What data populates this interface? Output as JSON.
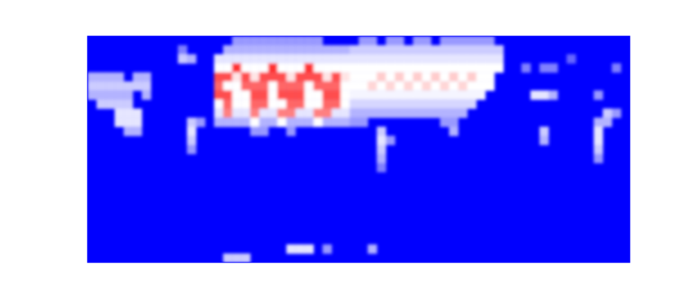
{
  "chart_data": {
    "type": "heatmap",
    "xlim": [
      0,
      60
    ],
    "ylim": [
      0,
      25
    ],
    "tick_labels": false,
    "color_range": [
      0,
      1
    ],
    "cells": [
      [
        16,
        24,
        0.3
      ],
      [
        17,
        24,
        0.3
      ],
      [
        18,
        24,
        0.3
      ],
      [
        19,
        24,
        0.3
      ],
      [
        20,
        24,
        0.3
      ],
      [
        21,
        24,
        0.3
      ],
      [
        22,
        24,
        0.3
      ],
      [
        23,
        24,
        0.3
      ],
      [
        24,
        24,
        0.3
      ],
      [
        25,
        24,
        0.3
      ],
      [
        30,
        24,
        0.3
      ],
      [
        31,
        24,
        0.3
      ],
      [
        33,
        24,
        0.3
      ],
      [
        34,
        24,
        0.3
      ],
      [
        36,
        24,
        0.3
      ],
      [
        37,
        24,
        0.3
      ],
      [
        39,
        24,
        0.3
      ],
      [
        40,
        24,
        0.3
      ],
      [
        41,
        24,
        0.3
      ],
      [
        42,
        24,
        0.3
      ],
      [
        43,
        24,
        0.3
      ],
      [
        44,
        24,
        0.3
      ],
      [
        10,
        23,
        0.25
      ],
      [
        15,
        23,
        0.35
      ],
      [
        16,
        23,
        0.35
      ],
      [
        17,
        23,
        0.35
      ],
      [
        18,
        23,
        0.35
      ],
      [
        19,
        23,
        0.35
      ],
      [
        20,
        23,
        0.35
      ],
      [
        21,
        23,
        0.35
      ],
      [
        22,
        23,
        0.35
      ],
      [
        23,
        23,
        0.35
      ],
      [
        24,
        23,
        0.35
      ],
      [
        25,
        23,
        0.35
      ],
      [
        26,
        23,
        0.35
      ],
      [
        27,
        23,
        0.35
      ],
      [
        28,
        23,
        0.35
      ],
      [
        29,
        23,
        0.4
      ],
      [
        30,
        23,
        0.4
      ],
      [
        31,
        23,
        0.4
      ],
      [
        32,
        23,
        0.4
      ],
      [
        33,
        23,
        0.4
      ],
      [
        34,
        23,
        0.4
      ],
      [
        35,
        23,
        0.4
      ],
      [
        36,
        23,
        0.4
      ],
      [
        37,
        23,
        0.4
      ],
      [
        38,
        23,
        0.4
      ],
      [
        39,
        23,
        0.4
      ],
      [
        40,
        23,
        0.4
      ],
      [
        41,
        23,
        0.4
      ],
      [
        42,
        23,
        0.4
      ],
      [
        43,
        23,
        0.4
      ],
      [
        44,
        23,
        0.4
      ],
      [
        45,
        23,
        0.4
      ],
      [
        10,
        22,
        0.4
      ],
      [
        11,
        22,
        0.35
      ],
      [
        14,
        22,
        0.45
      ],
      [
        15,
        22,
        0.45
      ],
      [
        16,
        22,
        0.45
      ],
      [
        17,
        22,
        0.45
      ],
      [
        18,
        22,
        0.45
      ],
      [
        19,
        22,
        0.45
      ],
      [
        20,
        22,
        0.45
      ],
      [
        21,
        22,
        0.45
      ],
      [
        22,
        22,
        0.45
      ],
      [
        23,
        22,
        0.45
      ],
      [
        24,
        22,
        0.45
      ],
      [
        25,
        22,
        0.45
      ],
      [
        26,
        22,
        0.45
      ],
      [
        27,
        22,
        0.45
      ],
      [
        28,
        22,
        0.45
      ],
      [
        29,
        22,
        0.45
      ],
      [
        30,
        22,
        0.45
      ],
      [
        31,
        22,
        0.45
      ],
      [
        32,
        22,
        0.45
      ],
      [
        33,
        22,
        0.45
      ],
      [
        34,
        22,
        0.45
      ],
      [
        35,
        22,
        0.45
      ],
      [
        36,
        22,
        0.45
      ],
      [
        37,
        22,
        0.45
      ],
      [
        38,
        22,
        0.45
      ],
      [
        39,
        22,
        0.45
      ],
      [
        40,
        22,
        0.45
      ],
      [
        41,
        22,
        0.45
      ],
      [
        42,
        22,
        0.45
      ],
      [
        43,
        22,
        0.45
      ],
      [
        44,
        22,
        0.45
      ],
      [
        45,
        22,
        0.45
      ],
      [
        53,
        22,
        0.2
      ],
      [
        14,
        21,
        0.5
      ],
      [
        15,
        21,
        0.5
      ],
      [
        16,
        21,
        0.9
      ],
      [
        17,
        21,
        0.5
      ],
      [
        18,
        21,
        0.5
      ],
      [
        19,
        21,
        0.5
      ],
      [
        20,
        21,
        0.9
      ],
      [
        21,
        21,
        0.5
      ],
      [
        22,
        21,
        0.5
      ],
      [
        23,
        21,
        0.5
      ],
      [
        24,
        21,
        0.9
      ],
      [
        25,
        21,
        0.5
      ],
      [
        26,
        21,
        0.5
      ],
      [
        27,
        21,
        0.5
      ],
      [
        28,
        21,
        0.5
      ],
      [
        29,
        21,
        0.5
      ],
      [
        30,
        21,
        0.5
      ],
      [
        31,
        21,
        0.5
      ],
      [
        32,
        21,
        0.5
      ],
      [
        33,
        21,
        0.5
      ],
      [
        34,
        21,
        0.5
      ],
      [
        35,
        21,
        0.5
      ],
      [
        36,
        21,
        0.5
      ],
      [
        37,
        21,
        0.5
      ],
      [
        38,
        21,
        0.5
      ],
      [
        39,
        21,
        0.5
      ],
      [
        40,
        21,
        0.5
      ],
      [
        41,
        21,
        0.5
      ],
      [
        42,
        21,
        0.5
      ],
      [
        43,
        21,
        0.5
      ],
      [
        44,
        21,
        0.5
      ],
      [
        45,
        21,
        0.5
      ],
      [
        48,
        21,
        0.25
      ],
      [
        50,
        21,
        0.25
      ],
      [
        51,
        21,
        0.25
      ],
      [
        58,
        21,
        0.25
      ],
      [
        0,
        20,
        0.35
      ],
      [
        1,
        20,
        0.35
      ],
      [
        2,
        20,
        0.35
      ],
      [
        3,
        20,
        0.35
      ],
      [
        5,
        20,
        0.35
      ],
      [
        6,
        20,
        0.35
      ],
      [
        14,
        20,
        0.85
      ],
      [
        15,
        20,
        0.85
      ],
      [
        16,
        20,
        0.55
      ],
      [
        17,
        20,
        0.85
      ],
      [
        18,
        20,
        0.55
      ],
      [
        19,
        20,
        0.85
      ],
      [
        20,
        20,
        0.85
      ],
      [
        21,
        20,
        0.85
      ],
      [
        22,
        20,
        0.55
      ],
      [
        23,
        20,
        0.85
      ],
      [
        24,
        20,
        0.85
      ],
      [
        25,
        20,
        0.85
      ],
      [
        26,
        20,
        0.55
      ],
      [
        27,
        20,
        0.85
      ],
      [
        28,
        20,
        0.55
      ],
      [
        29,
        20,
        0.5
      ],
      [
        30,
        20,
        0.5
      ],
      [
        31,
        20,
        0.5
      ],
      [
        32,
        20,
        0.6
      ],
      [
        33,
        20,
        0.5
      ],
      [
        34,
        20,
        0.6
      ],
      [
        35,
        20,
        0.5
      ],
      [
        36,
        20,
        0.6
      ],
      [
        37,
        20,
        0.5
      ],
      [
        38,
        20,
        0.6
      ],
      [
        39,
        20,
        0.5
      ],
      [
        40,
        20,
        0.6
      ],
      [
        41,
        20,
        0.5
      ],
      [
        42,
        20,
        0.6
      ],
      [
        43,
        20,
        0.5
      ],
      [
        44,
        20,
        0.5
      ],
      [
        0,
        19,
        0.4
      ],
      [
        1,
        19,
        0.4
      ],
      [
        2,
        19,
        0.4
      ],
      [
        3,
        19,
        0.4
      ],
      [
        4,
        19,
        0.4
      ],
      [
        5,
        19,
        0.4
      ],
      [
        6,
        19,
        0.4
      ],
      [
        14,
        19,
        0.8
      ],
      [
        15,
        19,
        0.5
      ],
      [
        16,
        19,
        0.5
      ],
      [
        17,
        19,
        0.8
      ],
      [
        18,
        19,
        0.8
      ],
      [
        19,
        19,
        0.8
      ],
      [
        20,
        19,
        0.5
      ],
      [
        21,
        19,
        0.8
      ],
      [
        22,
        19,
        0.8
      ],
      [
        23,
        19,
        0.8
      ],
      [
        24,
        19,
        0.5
      ],
      [
        25,
        19,
        0.8
      ],
      [
        26,
        19,
        0.8
      ],
      [
        27,
        19,
        0.8
      ],
      [
        28,
        19,
        0.5
      ],
      [
        29,
        19,
        0.5
      ],
      [
        30,
        19,
        0.5
      ],
      [
        31,
        19,
        0.58
      ],
      [
        32,
        19,
        0.5
      ],
      [
        33,
        19,
        0.58
      ],
      [
        34,
        19,
        0.5
      ],
      [
        35,
        19,
        0.58
      ],
      [
        36,
        19,
        0.5
      ],
      [
        37,
        19,
        0.58
      ],
      [
        38,
        19,
        0.5
      ],
      [
        39,
        19,
        0.58
      ],
      [
        40,
        19,
        0.5
      ],
      [
        41,
        19,
        0.58
      ],
      [
        42,
        19,
        0.5
      ],
      [
        43,
        19,
        0.5
      ],
      [
        44,
        19,
        0.5
      ],
      [
        0,
        18,
        0.35
      ],
      [
        1,
        18,
        0.35
      ],
      [
        2,
        18,
        0.35
      ],
      [
        3,
        18,
        0.35
      ],
      [
        4,
        18,
        0.35
      ],
      [
        6,
        18,
        0.35
      ],
      [
        14,
        18,
        0.85
      ],
      [
        15,
        18,
        0.85
      ],
      [
        16,
        18,
        0.5
      ],
      [
        17,
        18,
        0.5
      ],
      [
        18,
        18,
        0.85
      ],
      [
        19,
        18,
        0.85
      ],
      [
        20,
        18,
        0.5
      ],
      [
        21,
        18,
        0.85
      ],
      [
        22,
        18,
        0.85
      ],
      [
        23,
        18,
        0.85
      ],
      [
        24,
        18,
        0.5
      ],
      [
        25,
        18,
        0.5
      ],
      [
        26,
        18,
        0.85
      ],
      [
        27,
        18,
        0.85
      ],
      [
        28,
        18,
        0.5
      ],
      [
        29,
        18,
        0.48
      ],
      [
        30,
        18,
        0.48
      ],
      [
        31,
        18,
        0.48
      ],
      [
        32,
        18,
        0.48
      ],
      [
        33,
        18,
        0.48
      ],
      [
        34,
        18,
        0.48
      ],
      [
        35,
        18,
        0.48
      ],
      [
        36,
        18,
        0.48
      ],
      [
        37,
        18,
        0.48
      ],
      [
        38,
        18,
        0.48
      ],
      [
        39,
        18,
        0.48
      ],
      [
        40,
        18,
        0.48
      ],
      [
        41,
        18,
        0.48
      ],
      [
        42,
        18,
        0.48
      ],
      [
        43,
        18,
        0.48
      ],
      [
        49,
        18,
        0.45
      ],
      [
        50,
        18,
        0.45
      ],
      [
        51,
        18,
        0.35
      ],
      [
        56,
        18,
        0.3
      ],
      [
        1,
        17,
        0.4
      ],
      [
        2,
        17,
        0.4
      ],
      [
        3,
        17,
        0.4
      ],
      [
        4,
        17,
        0.4
      ],
      [
        14,
        17,
        0.5
      ],
      [
        15,
        17,
        0.8
      ],
      [
        16,
        17,
        0.5
      ],
      [
        17,
        17,
        0.5
      ],
      [
        18,
        17,
        0.8
      ],
      [
        19,
        17,
        0.8
      ],
      [
        20,
        17,
        0.5
      ],
      [
        21,
        17,
        0.5
      ],
      [
        22,
        17,
        0.8
      ],
      [
        23,
        17,
        0.8
      ],
      [
        24,
        17,
        0.5
      ],
      [
        25,
        17,
        0.5
      ],
      [
        26,
        17,
        0.8
      ],
      [
        27,
        17,
        0.8
      ],
      [
        28,
        17,
        0.5
      ],
      [
        29,
        17,
        0.42
      ],
      [
        30,
        17,
        0.42
      ],
      [
        31,
        17,
        0.42
      ],
      [
        32,
        17,
        0.42
      ],
      [
        33,
        17,
        0.42
      ],
      [
        34,
        17,
        0.42
      ],
      [
        35,
        17,
        0.42
      ],
      [
        36,
        17,
        0.42
      ],
      [
        37,
        17,
        0.42
      ],
      [
        38,
        17,
        0.42
      ],
      [
        39,
        17,
        0.42
      ],
      [
        40,
        17,
        0.42
      ],
      [
        41,
        17,
        0.42
      ],
      [
        42,
        17,
        0.42
      ],
      [
        3,
        16,
        0.45
      ],
      [
        4,
        16,
        0.45
      ],
      [
        5,
        16,
        0.45
      ],
      [
        14,
        16,
        0.45
      ],
      [
        15,
        16,
        0.75
      ],
      [
        16,
        16,
        0.45
      ],
      [
        17,
        16,
        0.45
      ],
      [
        18,
        16,
        0.75
      ],
      [
        19,
        16,
        0.45
      ],
      [
        20,
        16,
        0.45
      ],
      [
        21,
        16,
        0.75
      ],
      [
        22,
        16,
        0.75
      ],
      [
        23,
        16,
        0.45
      ],
      [
        24,
        16,
        0.45
      ],
      [
        25,
        16,
        0.75
      ],
      [
        26,
        16,
        0.75
      ],
      [
        27,
        16,
        0.45
      ],
      [
        28,
        16,
        0.45
      ],
      [
        29,
        16,
        0.35
      ],
      [
        30,
        16,
        0.35
      ],
      [
        31,
        16,
        0.35
      ],
      [
        32,
        16,
        0.35
      ],
      [
        33,
        16,
        0.35
      ],
      [
        34,
        16,
        0.35
      ],
      [
        35,
        16,
        0.35
      ],
      [
        36,
        16,
        0.35
      ],
      [
        37,
        16,
        0.35
      ],
      [
        38,
        16,
        0.35
      ],
      [
        39,
        16,
        0.35
      ],
      [
        40,
        16,
        0.35
      ],
      [
        41,
        16,
        0.35
      ],
      [
        57,
        16,
        0.4
      ],
      [
        58,
        16,
        0.3
      ],
      [
        3,
        15,
        0.45
      ],
      [
        4,
        15,
        0.45
      ],
      [
        5,
        15,
        0.45
      ],
      [
        11,
        15,
        0.4
      ],
      [
        12,
        15,
        0.3
      ],
      [
        14,
        15,
        0.35
      ],
      [
        15,
        15,
        0.35
      ],
      [
        16,
        15,
        0.35
      ],
      [
        17,
        15,
        0.35
      ],
      [
        18,
        15,
        0.5
      ],
      [
        19,
        15,
        0.35
      ],
      [
        20,
        15,
        0.35
      ],
      [
        21,
        15,
        0.5
      ],
      [
        22,
        15,
        0.35
      ],
      [
        23,
        15,
        0.35
      ],
      [
        24,
        15,
        0.35
      ],
      [
        25,
        15,
        0.5
      ],
      [
        26,
        15,
        0.35
      ],
      [
        27,
        15,
        0.35
      ],
      [
        28,
        15,
        0.35
      ],
      [
        29,
        15,
        0.3
      ],
      [
        30,
        15,
        0.3
      ],
      [
        39,
        15,
        0.3
      ],
      [
        40,
        15,
        0.3
      ],
      [
        56,
        15,
        0.35
      ],
      [
        57,
        15,
        0.35
      ],
      [
        4,
        14,
        0.35
      ],
      [
        5,
        14,
        0.35
      ],
      [
        11,
        14,
        0.45
      ],
      [
        18,
        14,
        0.3
      ],
      [
        19,
        14,
        0.3
      ],
      [
        22,
        14,
        0.3
      ],
      [
        32,
        14,
        0.4
      ],
      [
        40,
        14,
        0.35
      ],
      [
        50,
        14,
        0.4
      ],
      [
        56,
        14,
        0.45
      ],
      [
        11,
        13,
        0.4
      ],
      [
        32,
        13,
        0.45
      ],
      [
        33,
        13,
        0.3
      ],
      [
        50,
        13,
        0.35
      ],
      [
        56,
        13,
        0.45
      ],
      [
        11,
        12,
        0.3
      ],
      [
        32,
        12,
        0.4
      ],
      [
        56,
        12,
        0.4
      ],
      [
        32,
        11,
        0.35
      ],
      [
        56,
        11,
        0.3
      ],
      [
        32,
        10,
        0.25
      ],
      [
        22,
        1,
        0.45
      ],
      [
        23,
        1,
        0.45
      ],
      [
        24,
        1,
        0.45
      ],
      [
        26,
        1,
        0.3
      ],
      [
        31,
        1,
        0.35
      ],
      [
        15,
        0,
        0.4
      ],
      [
        16,
        0,
        0.4
      ],
      [
        17,
        0,
        0.4
      ]
    ]
  }
}
